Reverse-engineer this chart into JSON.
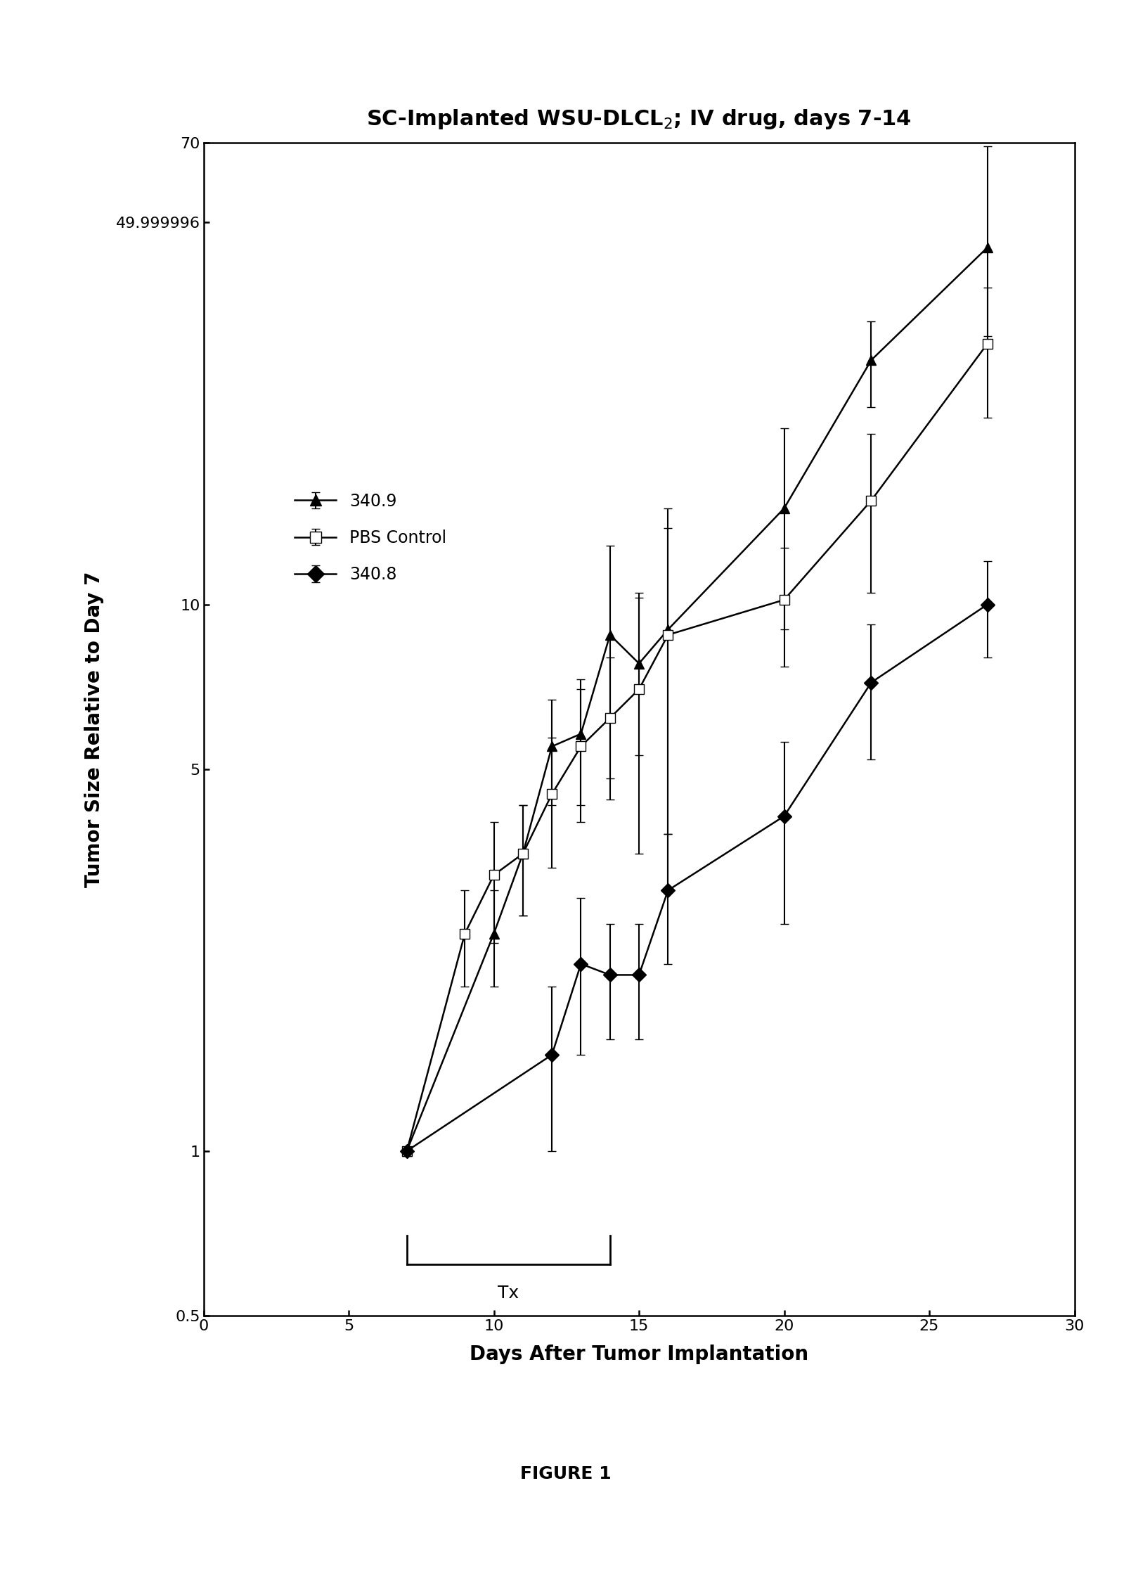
{
  "title": "SC-Implanted WSU-DLCL$_2$; IV drug, days 7-14",
  "xlabel": "Days After Tumor Implantation",
  "ylabel": "Tumor Size Relative to Day 7",
  "figure_caption": "FIGURE 1",
  "xlim": [
    0,
    30
  ],
  "ylim_log": [
    0.5,
    70
  ],
  "ytick_vals": [
    0.5,
    1,
    5,
    10,
    49.999996,
    70
  ],
  "ytick_labels": [
    "0.5",
    "1",
    "5",
    "10",
    "49.999996",
    "70"
  ],
  "xticks": [
    0,
    5,
    10,
    15,
    20,
    25,
    30
  ],
  "series_340_9": {
    "label": "340.9",
    "x": [
      7,
      10,
      11,
      12,
      13,
      14,
      15,
      16,
      20,
      23,
      27
    ],
    "y": [
      1.0,
      2.5,
      3.5,
      5.5,
      5.8,
      8.8,
      7.8,
      9.0,
      15.0,
      28.0,
      45.0
    ],
    "yerr_lo": [
      0.0,
      0.5,
      0.8,
      1.2,
      1.5,
      4.0,
      2.5,
      6.0,
      6.0,
      5.0,
      14.0
    ],
    "yerr_hi": [
      0.0,
      0.5,
      0.8,
      1.2,
      1.5,
      4.0,
      2.5,
      6.0,
      6.0,
      5.0,
      24.0
    ],
    "marker": "^",
    "markersize": 10,
    "markerfacecolor": "black",
    "markeredgecolor": "black"
  },
  "series_pbs": {
    "label": "PBS Control",
    "x": [
      7,
      9,
      10,
      11,
      12,
      13,
      14,
      15,
      16,
      20,
      23,
      27
    ],
    "y": [
      1.0,
      2.5,
      3.2,
      3.5,
      4.5,
      5.5,
      6.2,
      7.0,
      8.8,
      10.2,
      15.5,
      30.0
    ],
    "yerr_lo": [
      0.0,
      0.5,
      0.8,
      0.8,
      1.2,
      1.5,
      1.8,
      3.5,
      5.0,
      2.5,
      5.0,
      8.0
    ],
    "yerr_hi": [
      0.0,
      0.5,
      0.8,
      0.8,
      1.2,
      1.5,
      1.8,
      3.5,
      5.0,
      2.5,
      5.0,
      8.0
    ],
    "marker": "s",
    "markersize": 10,
    "markerfacecolor": "white",
    "markeredgecolor": "black"
  },
  "series_340_8": {
    "label": "340.8",
    "x": [
      7,
      12,
      13,
      14,
      15,
      16,
      20,
      23,
      27
    ],
    "y": [
      1.0,
      1.5,
      2.2,
      2.1,
      2.1,
      3.0,
      4.1,
      7.2,
      10.0
    ],
    "yerr_lo": [
      0.0,
      0.5,
      0.7,
      0.5,
      0.5,
      0.8,
      1.5,
      2.0,
      2.0
    ],
    "yerr_hi": [
      0.0,
      0.5,
      0.7,
      0.5,
      0.5,
      0.8,
      1.5,
      2.0,
      2.0
    ],
    "marker": "D",
    "markersize": 10,
    "markerfacecolor": "black",
    "markeredgecolor": "black"
  },
  "tx_x_start": 7,
  "tx_x_end": 14,
  "bg_color": "white",
  "linewidth": 1.8,
  "capsize": 4,
  "elinewidth": 1.5
}
